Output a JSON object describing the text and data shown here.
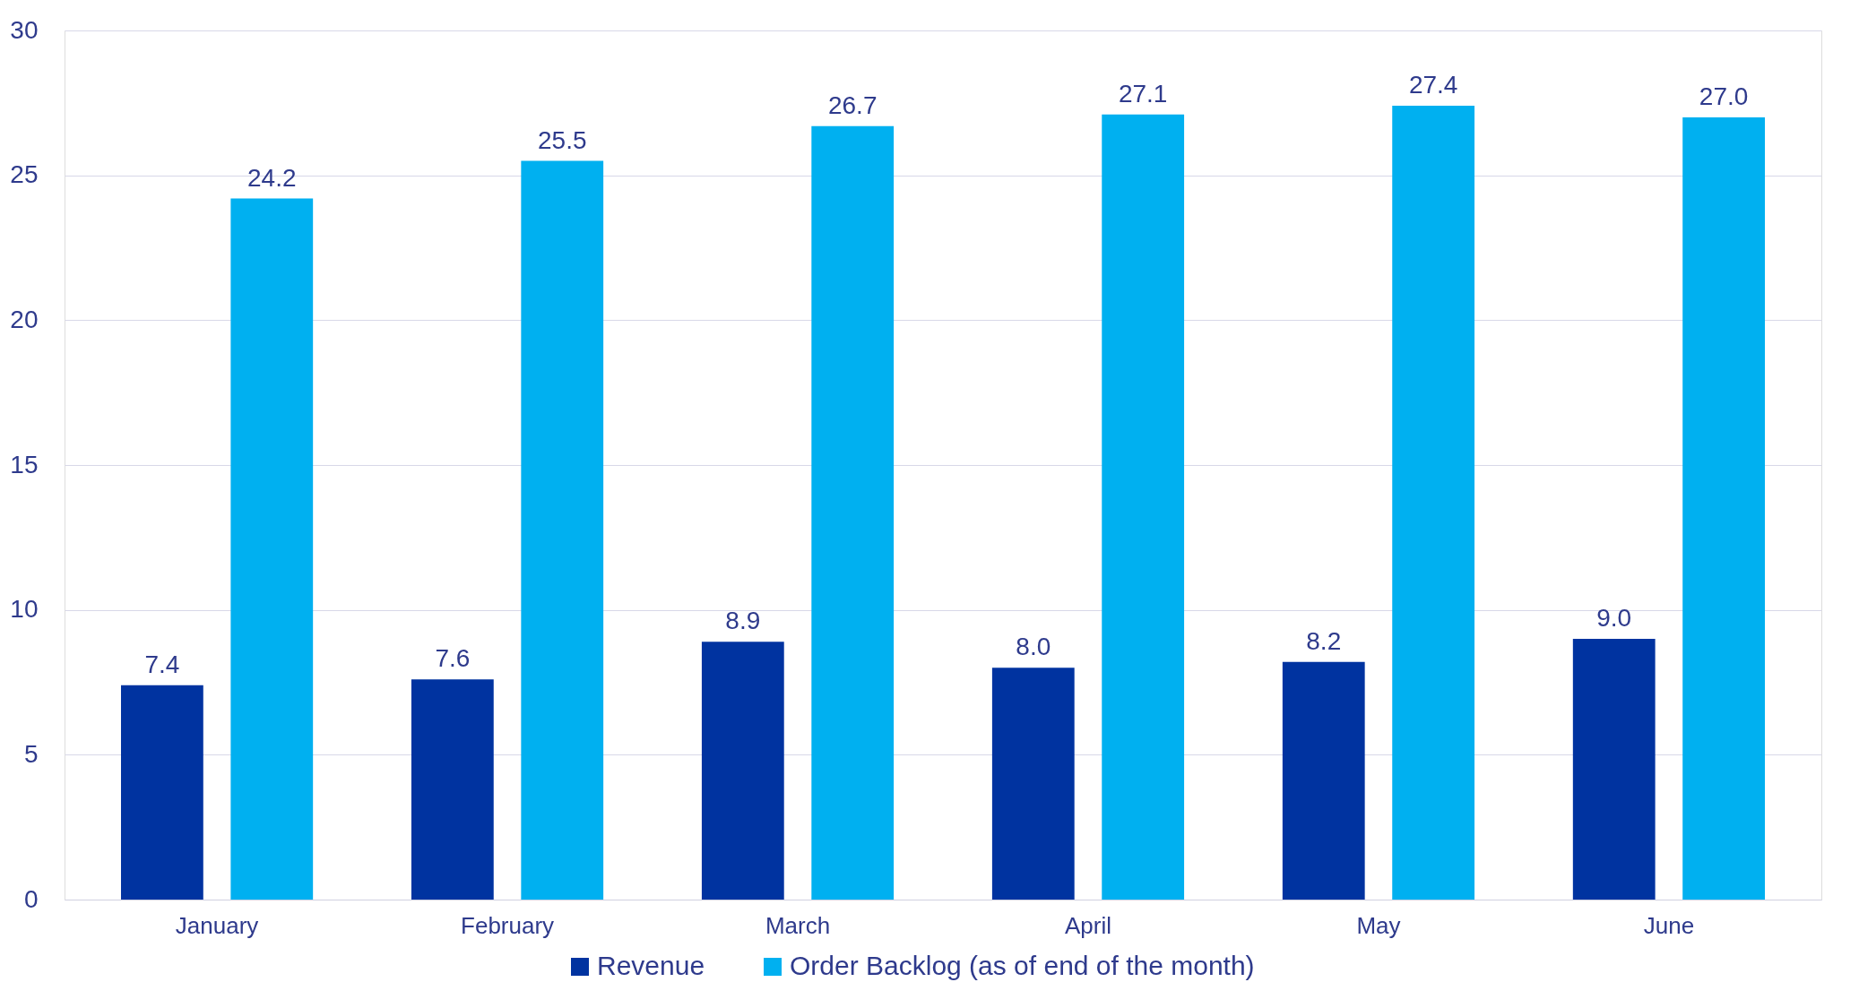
{
  "chart_data": {
    "type": "bar",
    "categories": [
      "January",
      "February",
      "March",
      "April",
      "May",
      "June"
    ],
    "series": [
      {
        "name": "Revenue",
        "color": "#0033a0",
        "values": [
          7.4,
          7.6,
          8.9,
          8.0,
          8.2,
          9.0
        ],
        "value_labels": [
          "7.4",
          "7.6",
          "8.9",
          "8.0",
          "8.2",
          "9.0"
        ]
      },
      {
        "name": "Order Backlog (as of end of the month)",
        "color": "#00b0f0",
        "values": [
          24.2,
          25.5,
          26.7,
          27.1,
          27.4,
          27.0
        ],
        "value_labels": [
          "24.2",
          "25.5",
          "26.7",
          "27.1",
          "27.4",
          "27.0"
        ]
      }
    ],
    "ylim": [
      0,
      30
    ],
    "yticks": [
      0,
      5,
      10,
      15,
      20,
      25,
      30
    ],
    "grid": "y",
    "legend": "bottom"
  }
}
